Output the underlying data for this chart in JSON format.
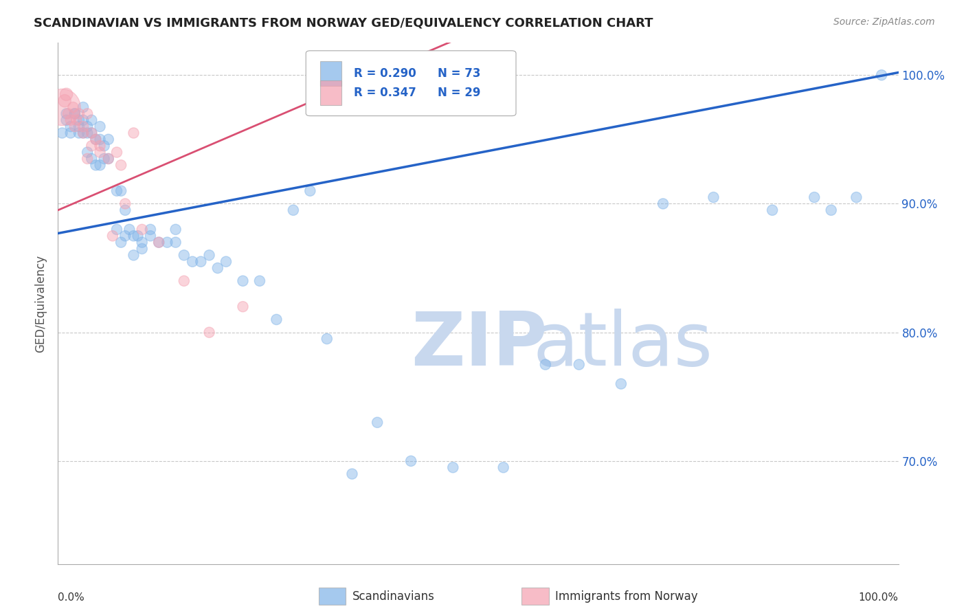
{
  "title": "SCANDINAVIAN VS IMMIGRANTS FROM NORWAY GED/EQUIVALENCY CORRELATION CHART",
  "source": "Source: ZipAtlas.com",
  "ylabel": "GED/Equivalency",
  "xmin": 0.0,
  "xmax": 1.0,
  "ymin": 0.62,
  "ymax": 1.025,
  "yticks": [
    0.7,
    0.8,
    0.9,
    1.0
  ],
  "ytick_labels": [
    "70.0%",
    "80.0%",
    "90.0%",
    "100.0%"
  ],
  "grid_color": "#c8c8c8",
  "background_color": "#ffffff",
  "blue_color": "#7fb3e8",
  "pink_color": "#f4a0b0",
  "blue_line_color": "#2563c7",
  "pink_line_color": "#d94f72",
  "legend_R_blue": "R = 0.290",
  "legend_N_blue": "N = 73",
  "legend_R_pink": "R = 0.347",
  "legend_N_pink": "N = 29",
  "blue_intercept": 0.877,
  "blue_slope": 0.125,
  "pink_intercept": 0.895,
  "pink_slope": 0.28,
  "scandinavians_x": [
    0.005,
    0.01,
    0.01,
    0.015,
    0.015,
    0.02,
    0.02,
    0.025,
    0.025,
    0.025,
    0.03,
    0.03,
    0.03,
    0.035,
    0.035,
    0.035,
    0.04,
    0.04,
    0.04,
    0.045,
    0.045,
    0.05,
    0.05,
    0.05,
    0.055,
    0.055,
    0.06,
    0.06,
    0.07,
    0.07,
    0.075,
    0.075,
    0.08,
    0.08,
    0.085,
    0.09,
    0.09,
    0.095,
    0.1,
    0.1,
    0.11,
    0.11,
    0.12,
    0.13,
    0.14,
    0.14,
    0.15,
    0.16,
    0.17,
    0.18,
    0.19,
    0.2,
    0.22,
    0.24,
    0.26,
    0.28,
    0.3,
    0.32,
    0.35,
    0.38,
    0.42,
    0.47,
    0.53,
    0.58,
    0.62,
    0.67,
    0.72,
    0.78,
    0.85,
    0.9,
    0.92,
    0.95,
    0.98
  ],
  "scandinavians_y": [
    0.955,
    0.97,
    0.965,
    0.96,
    0.955,
    0.97,
    0.97,
    0.955,
    0.965,
    0.96,
    0.955,
    0.965,
    0.975,
    0.96,
    0.955,
    0.94,
    0.965,
    0.955,
    0.935,
    0.93,
    0.95,
    0.95,
    0.96,
    0.93,
    0.935,
    0.945,
    0.935,
    0.95,
    0.91,
    0.88,
    0.87,
    0.91,
    0.895,
    0.875,
    0.88,
    0.875,
    0.86,
    0.875,
    0.865,
    0.87,
    0.88,
    0.875,
    0.87,
    0.87,
    0.87,
    0.88,
    0.86,
    0.855,
    0.855,
    0.86,
    0.85,
    0.855,
    0.84,
    0.84,
    0.81,
    0.895,
    0.91,
    0.795,
    0.69,
    0.73,
    0.7,
    0.695,
    0.695,
    0.775,
    0.775,
    0.76,
    0.9,
    0.905,
    0.895,
    0.905,
    0.895,
    0.905,
    1.0
  ],
  "scandinavians_size": [
    10,
    10,
    10,
    10,
    10,
    10,
    10,
    10,
    10,
    10,
    10,
    10,
    10,
    10,
    10,
    10,
    10,
    10,
    10,
    10,
    10,
    10,
    10,
    10,
    10,
    10,
    10,
    10,
    10,
    10,
    10,
    10,
    10,
    10,
    10,
    10,
    10,
    10,
    10,
    10,
    10,
    10,
    10,
    10,
    10,
    10,
    10,
    10,
    10,
    10,
    10,
    10,
    10,
    10,
    10,
    10,
    10,
    10,
    10,
    10,
    10,
    10,
    10,
    10,
    10,
    10,
    10,
    10,
    10,
    10,
    10,
    10,
    10
  ],
  "norway_x": [
    0.005,
    0.008,
    0.01,
    0.012,
    0.015,
    0.018,
    0.02,
    0.022,
    0.025,
    0.03,
    0.03,
    0.035,
    0.035,
    0.04,
    0.04,
    0.045,
    0.05,
    0.05,
    0.06,
    0.065,
    0.07,
    0.075,
    0.08,
    0.09,
    0.1,
    0.12,
    0.15,
    0.18,
    0.22
  ],
  "norway_y": [
    0.975,
    0.98,
    0.985,
    0.97,
    0.965,
    0.975,
    0.96,
    0.965,
    0.97,
    0.955,
    0.96,
    0.935,
    0.97,
    0.945,
    0.955,
    0.95,
    0.945,
    0.94,
    0.935,
    0.875,
    0.94,
    0.93,
    0.9,
    0.955,
    0.88,
    0.87,
    0.84,
    0.8,
    0.82
  ],
  "norway_size": [
    35,
    12,
    12,
    10,
    10,
    10,
    10,
    10,
    10,
    10,
    10,
    10,
    10,
    10,
    10,
    10,
    10,
    10,
    10,
    10,
    10,
    10,
    10,
    10,
    10,
    10,
    10,
    10,
    10
  ]
}
